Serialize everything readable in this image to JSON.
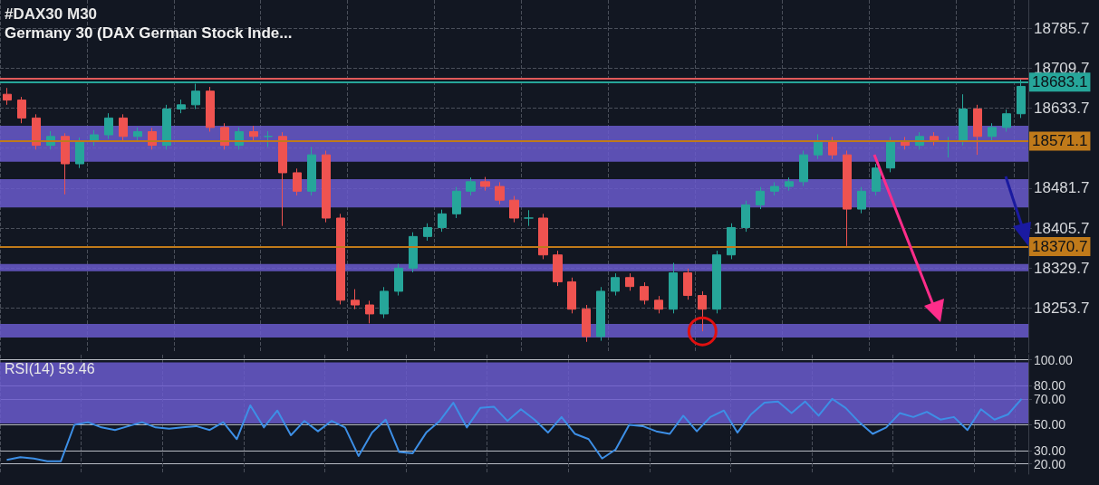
{
  "chart_data": [
    {
      "type": "candlestick",
      "title": "#DAX30 M30",
      "subtitle": "Germany 30 (DAX German Stock Inde...",
      "categories": [
        null,
        null,
        null,
        null,
        null,
        null,
        null,
        null,
        null,
        null,
        null,
        null,
        null,
        null,
        null,
        null,
        null,
        null,
        null,
        null,
        null,
        null,
        null,
        null,
        null,
        null,
        null,
        null,
        null,
        null,
        null,
        null,
        null,
        null,
        null,
        null,
        null,
        null,
        null,
        null,
        null,
        null,
        null,
        null,
        null,
        null,
        null,
        null,
        null,
        null,
        null,
        null,
        null,
        null,
        null,
        null,
        null,
        null,
        null,
        null,
        null,
        null,
        null,
        null,
        null,
        null,
        null,
        null,
        null,
        null,
        null
      ],
      "ohlc": [
        [
          18660,
          18672,
          18640,
          18649
        ],
        [
          18649,
          18655,
          18605,
          18615
        ],
        [
          18615,
          18622,
          18555,
          18563
        ],
        [
          18563,
          18590,
          18555,
          18580
        ],
        [
          18580,
          18586,
          18470,
          18528
        ],
        [
          18528,
          18578,
          18520,
          18571
        ],
        [
          18571,
          18592,
          18562,
          18583
        ],
        [
          18583,
          18624,
          18575,
          18615
        ],
        [
          18615,
          18622,
          18572,
          18580
        ],
        [
          18580,
          18597,
          18572,
          18589
        ],
        [
          18589,
          18596,
          18555,
          18563
        ],
        [
          18563,
          18640,
          18555,
          18632
        ],
        [
          18632,
          18650,
          18624,
          18640
        ],
        [
          18640,
          18680,
          18632,
          18666
        ],
        [
          18666,
          18674,
          18589,
          18597
        ],
        [
          18597,
          18605,
          18555,
          18563
        ],
        [
          18563,
          18597,
          18555,
          18589
        ],
        [
          18589,
          18600,
          18572,
          18580
        ],
        [
          18580,
          18590,
          18560,
          18580
        ],
        [
          18580,
          18588,
          18410,
          18511
        ],
        [
          18511,
          18519,
          18468,
          18476
        ],
        [
          18476,
          18560,
          18468,
          18545
        ],
        [
          18545,
          18553,
          18417,
          18425
        ],
        [
          18425,
          18433,
          18261,
          18269
        ],
        [
          18269,
          18290,
          18252,
          18260
        ],
        [
          18260,
          18268,
          18225,
          18243
        ],
        [
          18243,
          18294,
          18235,
          18286
        ],
        [
          18286,
          18338,
          18278,
          18330
        ],
        [
          18330,
          18398,
          18322,
          18390
        ],
        [
          18390,
          18415,
          18382,
          18407
        ],
        [
          18407,
          18441,
          18399,
          18433
        ],
        [
          18433,
          18484,
          18425,
          18476
        ],
        [
          18476,
          18502,
          18468,
          18494
        ],
        [
          18494,
          18503,
          18477,
          18485
        ],
        [
          18485,
          18493,
          18451,
          18459
        ],
        [
          18459,
          18467,
          18417,
          18425
        ],
        [
          18425,
          18440,
          18410,
          18425
        ],
        [
          18425,
          18433,
          18347,
          18355
        ],
        [
          18355,
          18363,
          18296,
          18304
        ],
        [
          18304,
          18312,
          18244,
          18252
        ],
        [
          18252,
          18260,
          18190,
          18200
        ],
        [
          18200,
          18294,
          18192,
          18286
        ],
        [
          18286,
          18320,
          18278,
          18312
        ],
        [
          18312,
          18320,
          18287,
          18295
        ],
        [
          18295,
          18303,
          18261,
          18269
        ],
        [
          18269,
          18277,
          18244,
          18252
        ],
        [
          18252,
          18340,
          18244,
          18321
        ],
        [
          18321,
          18329,
          18270,
          18278
        ],
        [
          18278,
          18286,
          18210,
          18252
        ],
        [
          18252,
          18363,
          18244,
          18355
        ],
        [
          18355,
          18415,
          18347,
          18407
        ],
        [
          18407,
          18458,
          18399,
          18450
        ],
        [
          18450,
          18484,
          18442,
          18476
        ],
        [
          18476,
          18493,
          18468,
          18485
        ],
        [
          18485,
          18502,
          18477,
          18494
        ],
        [
          18494,
          18553,
          18486,
          18545
        ],
        [
          18545,
          18584,
          18537,
          18571
        ],
        [
          18571,
          18579,
          18537,
          18545
        ],
        [
          18545,
          18553,
          18372,
          18442
        ],
        [
          18442,
          18484,
          18434,
          18476
        ],
        [
          18476,
          18528,
          18468,
          18520
        ],
        [
          18520,
          18579,
          18512,
          18571
        ],
        [
          18571,
          18579,
          18555,
          18563
        ],
        [
          18563,
          18588,
          18555,
          18580
        ],
        [
          18580,
          18588,
          18563,
          18571
        ],
        [
          18571,
          18579,
          18540,
          18571
        ],
        [
          18571,
          18660,
          18563,
          18632
        ],
        [
          18632,
          18640,
          18545,
          18580
        ],
        [
          18580,
          18605,
          18572,
          18597
        ],
        [
          18597,
          18631,
          18589,
          18623
        ],
        [
          18623,
          18690,
          18615,
          18675
        ]
      ],
      "ylim": [
        18169,
        18839
      ],
      "yticks": [
        18253.7,
        18329.7,
        18405.7,
        18481.7,
        {
          "value": 18557.7,
          "label": null
        },
        18633.7,
        18709.7,
        18785.7
      ],
      "ref_lines": [
        {
          "axis": "y",
          "value": 18690,
          "label": null,
          "color": "#e05a5a"
        },
        {
          "axis": "y",
          "value": 18683.1,
          "label": "18683.1",
          "color": "#26a69a"
        },
        {
          "axis": "y",
          "value": 18571.1,
          "label": "18571.1",
          "color": "#c07a1a"
        },
        {
          "axis": "y",
          "value": 18370.7,
          "label": "18370.7",
          "color": "#c07a1a"
        }
      ],
      "bands": [
        {
          "axis": "y",
          "from": 18445,
          "to": 18499,
          "color": "#6a5acd"
        },
        {
          "axis": "y",
          "from": 18324,
          "to": 18338,
          "color": "#6a5acd"
        },
        {
          "axis": "y",
          "from": 18198,
          "to": 18224,
          "color": "#6a5acd"
        },
        {
          "axis": "y",
          "from": 18532,
          "to": 18600,
          "color": "#6a5acd"
        }
      ],
      "grid": true,
      "tick_labels": "y"
    },
    {
      "type": "line",
      "title": "RSI(14) 59.46",
      "categories": [
        null,
        null,
        null,
        null,
        null,
        null,
        null,
        null,
        null,
        null,
        null,
        null,
        null,
        null,
        null,
        null,
        null,
        null,
        null,
        null,
        null,
        null,
        null,
        null,
        null,
        null,
        null,
        null,
        null,
        null,
        null,
        null,
        null,
        null,
        null,
        null,
        null,
        null,
        null,
        null,
        null,
        null,
        null,
        null,
        null,
        null,
        null,
        null,
        null,
        null,
        null,
        null,
        null,
        null,
        null,
        null,
        null,
        null,
        null,
        null,
        null,
        null,
        null,
        null,
        null,
        null,
        null,
        null,
        null,
        null,
        null,
        null,
        null,
        null,
        null,
        null
      ],
      "series": [
        {
          "color": "#3d8fe6",
          "values": [
            23,
            25,
            24,
            22,
            22,
            50,
            52,
            48,
            46,
            49,
            52,
            48,
            47,
            48,
            49,
            46,
            52,
            39,
            65,
            48,
            61,
            42,
            53,
            45,
            53,
            48,
            26,
            44,
            54,
            29,
            28,
            44,
            53,
            67,
            48,
            63,
            64,
            53,
            62,
            54,
            44,
            56,
            43,
            39,
            24,
            31,
            50,
            49,
            45,
            43,
            57,
            45,
            56,
            61,
            44,
            58,
            67,
            68,
            59,
            68,
            57,
            70,
            63,
            52,
            43,
            48,
            59,
            56,
            60,
            54,
            56,
            46,
            62,
            54,
            58,
            70
          ]
        }
      ],
      "ylim": [
        12,
        104
      ],
      "yticks": [
        {
          "value": 20,
          "label": "20.00"
        },
        {
          "value": 30,
          "label": "30.00"
        },
        {
          "value": 50,
          "label": "50.00"
        },
        {
          "value": 70,
          "label": "70.00"
        },
        {
          "value": 80,
          "label": "80.00"
        },
        {
          "value": 100,
          "label": "100.00"
        }
      ],
      "bands": [
        {
          "axis": "y",
          "from": 51,
          "to": 98,
          "color": "#6a5acd"
        }
      ],
      "grid": true,
      "tick_labels": "y"
    }
  ]
}
